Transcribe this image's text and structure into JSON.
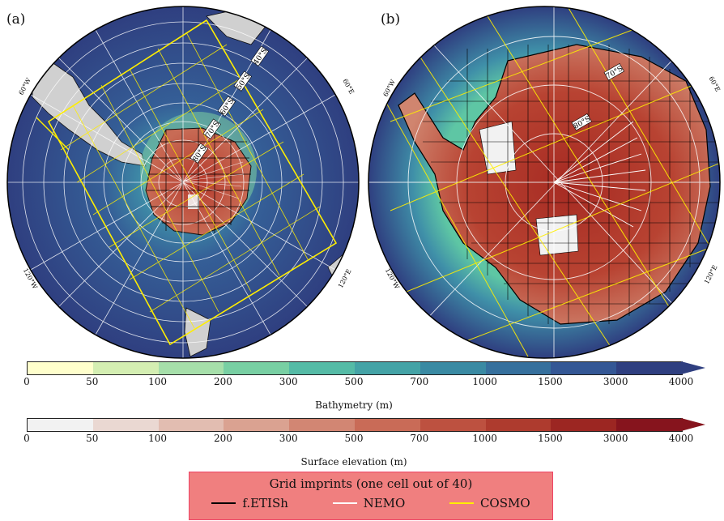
{
  "panels": [
    {
      "label": "(a)",
      "lat_labels": [
        "40°S",
        "50°S",
        "60°S",
        "70°S",
        "80°S"
      ],
      "lon_labels": [
        "60°W",
        "60°E",
        "120°W",
        "120°E"
      ]
    },
    {
      "label": "(b)",
      "lat_labels": [
        "70°S",
        "80°S"
      ],
      "lon_labels": [
        "60°W",
        "60°E",
        "120°W",
        "120°E"
      ]
    }
  ],
  "bathymetry_colorbar": {
    "label": "Bathymetry (m)",
    "ticks": [
      "0",
      "50",
      "100",
      "200",
      "300",
      "500",
      "700",
      "1000",
      "1500",
      "3000",
      "4000"
    ],
    "colors": [
      "#ffffcc",
      "#d4eeb2",
      "#a6dfaa",
      "#78cfa3",
      "#55bba6",
      "#44a3a6",
      "#3a8aa3",
      "#36709d",
      "#345795",
      "#2f3f80"
    ],
    "extend": "max"
  },
  "elevation_colorbar": {
    "label": "Surface elevation (m)",
    "ticks": [
      "0",
      "50",
      "100",
      "200",
      "300",
      "500",
      "700",
      "1000",
      "1500",
      "3000",
      "4000"
    ],
    "colors": [
      "#f2f2f2",
      "#ead8d2",
      "#e2bdb1",
      "#daa291",
      "#d28673",
      "#c96b57",
      "#bd5140",
      "#ae3b2e",
      "#9c2622",
      "#86141d"
    ],
    "extend": "max"
  },
  "legend": {
    "title": "Grid imprints (one cell out of 40)",
    "items": [
      {
        "label": "f.ETISh",
        "color": "#000000"
      },
      {
        "label": "NEMO",
        "color": "#ffffff"
      },
      {
        "label": "COSMO",
        "color": "#ffee00"
      }
    ]
  }
}
